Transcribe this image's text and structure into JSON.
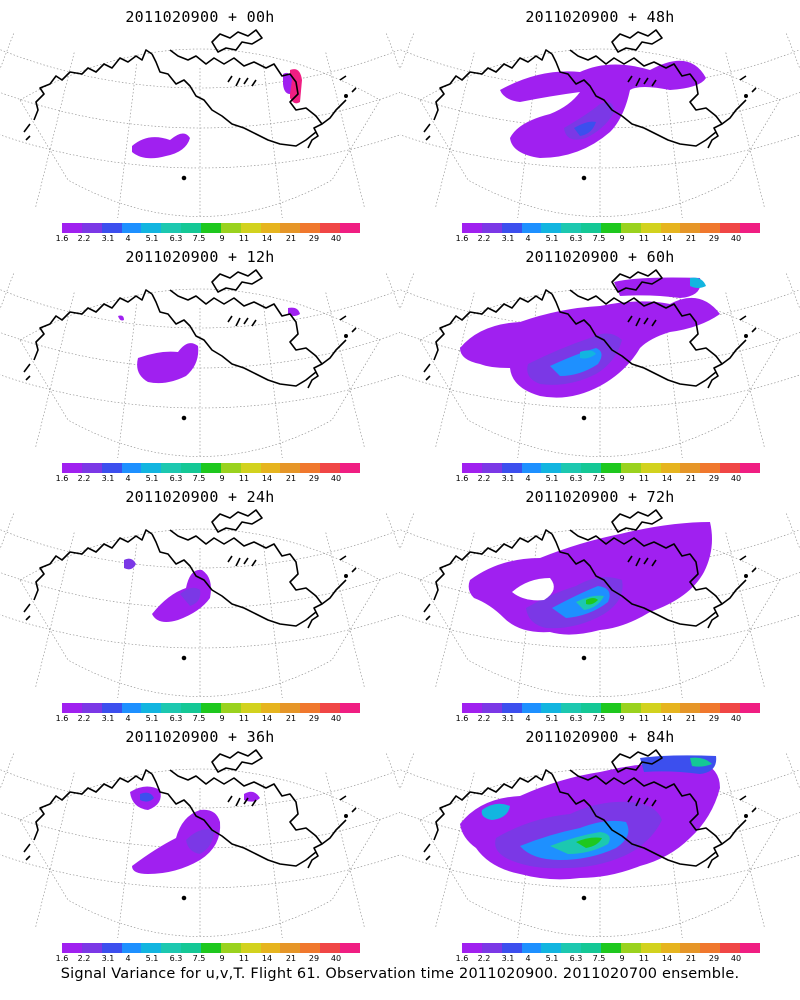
{
  "colorbar": {
    "colors": [
      "#a020f0",
      "#7b38e6",
      "#3c4fee",
      "#1e90ff",
      "#12b5e0",
      "#1cc8b0",
      "#14c896",
      "#1ec81e",
      "#9ad21e",
      "#d2d21e",
      "#e6b41e",
      "#e69628",
      "#f0782d",
      "#f04646",
      "#f01e82"
    ],
    "labels": [
      "1.6",
      "2.2",
      "3.1",
      "4",
      "5.1",
      "6.3",
      "7.5",
      "9",
      "11",
      "14",
      "21",
      "29",
      "40"
    ]
  },
  "panels": [
    {
      "title": "2011020900 + 00h",
      "level": 0
    },
    {
      "title": "2011020900 + 48h",
      "level": 4
    },
    {
      "title": "2011020900 + 12h",
      "level": 1
    },
    {
      "title": "2011020900 + 60h",
      "level": 5
    },
    {
      "title": "2011020900 + 24h",
      "level": 2
    },
    {
      "title": "2011020900 + 72h",
      "level": 6
    },
    {
      "title": "2011020900 + 36h",
      "level": 3
    },
    {
      "title": "2011020900 + 84h",
      "level": 7
    }
  ],
  "caption": "Signal Variance for u,v,T. Flight 61. Observation time 2011020900. 2011020700 ensemble."
}
